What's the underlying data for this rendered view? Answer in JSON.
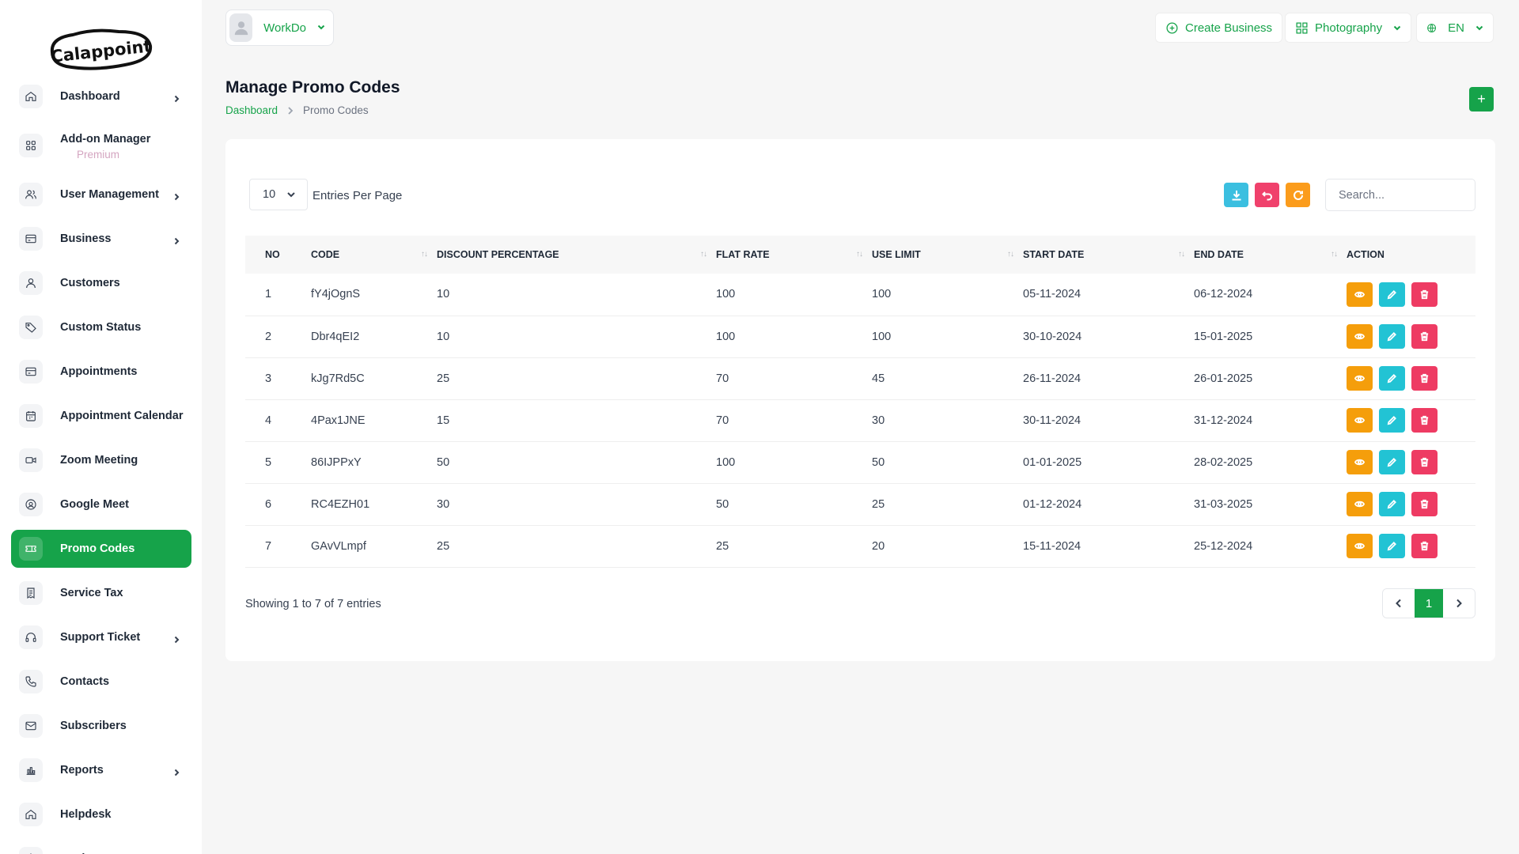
{
  "brand": {
    "logo_text": "Calappoint"
  },
  "sidebar": {
    "items": [
      {
        "label": "Dashboard",
        "icon": "home-icon",
        "chevron": true
      },
      {
        "label": "Add-on Manager",
        "sub": "Premium",
        "icon": "grid-icon",
        "chevron": false
      },
      {
        "label": "User Management",
        "icon": "users-icon",
        "chevron": true
      },
      {
        "label": "Business",
        "icon": "business-icon",
        "chevron": true
      },
      {
        "label": "Customers",
        "icon": "user-icon",
        "chevron": false
      },
      {
        "label": "Custom Status",
        "icon": "tag-icon",
        "chevron": false
      },
      {
        "label": "Appointments",
        "icon": "card-icon",
        "chevron": false
      },
      {
        "label": "Appointment Calendar",
        "icon": "calendar-icon",
        "chevron": false
      },
      {
        "label": "Zoom Meeting",
        "icon": "video-icon",
        "chevron": false
      },
      {
        "label": "Google Meet",
        "icon": "meet-icon",
        "chevron": false
      },
      {
        "label": "Promo Codes",
        "icon": "ticket-icon",
        "chevron": false,
        "active": true
      },
      {
        "label": "Service Tax",
        "icon": "receipt-icon",
        "chevron": false
      },
      {
        "label": "Support Ticket",
        "icon": "headset-icon",
        "chevron": true
      },
      {
        "label": "Contacts",
        "icon": "phone-icon",
        "chevron": false
      },
      {
        "label": "Subscribers",
        "icon": "mail-icon",
        "chevron": false
      },
      {
        "label": "Reports",
        "icon": "chart-icon",
        "chevron": true
      },
      {
        "label": "Helpdesk",
        "icon": "home-icon",
        "chevron": false
      },
      {
        "label": "Settings",
        "icon": "gear-icon",
        "chevron": true
      }
    ]
  },
  "topbar": {
    "workspace": "WorkDo",
    "create_business": "Create Business",
    "business_select": "Photography",
    "language": "EN"
  },
  "page": {
    "title": "Manage Promo Codes",
    "breadcrumb": {
      "home": "Dashboard",
      "current": "Promo Codes"
    },
    "add_button": "+"
  },
  "table_controls": {
    "per_page_value": "10",
    "per_page_label": "Entries Per Page",
    "search_placeholder": "Search..."
  },
  "table": {
    "headers": [
      "NO",
      "CODE",
      "DISCOUNT PERCENTAGE",
      "FLAT RATE",
      "USE LIMIT",
      "START DATE",
      "END DATE",
      "ACTION"
    ],
    "rows": [
      [
        "1",
        "fY4jOgnS",
        "10",
        "100",
        "100",
        "05-11-2024",
        "06-12-2024"
      ],
      [
        "2",
        "Dbr4qEI2",
        "10",
        "100",
        "100",
        "30-10-2024",
        "15-01-2025"
      ],
      [
        "3",
        "kJg7Rd5C",
        "25",
        "70",
        "45",
        "26-11-2024",
        "26-01-2025"
      ],
      [
        "4",
        "4Pax1JNE",
        "15",
        "70",
        "30",
        "30-11-2024",
        "31-12-2024"
      ],
      [
        "5",
        "86IJPPxY",
        "50",
        "100",
        "50",
        "01-01-2025",
        "28-02-2025"
      ],
      [
        "6",
        "RC4EZH01",
        "30",
        "50",
        "25",
        "01-12-2024",
        "31-03-2025"
      ],
      [
        "7",
        "GAvVLmpf",
        "25",
        "25",
        "20",
        "15-11-2024",
        "25-12-2024"
      ]
    ]
  },
  "footer": {
    "showing": "Showing 1 to 7 of 7 entries",
    "current_page": "1"
  },
  "colors": {
    "primary": "#16a34a",
    "view": "#f59e0b",
    "edit": "#22c3d4",
    "delete": "#ee3b63",
    "export": "#3bbfe0",
    "reset": "#f0416c",
    "refresh": "#fb9c1c"
  }
}
